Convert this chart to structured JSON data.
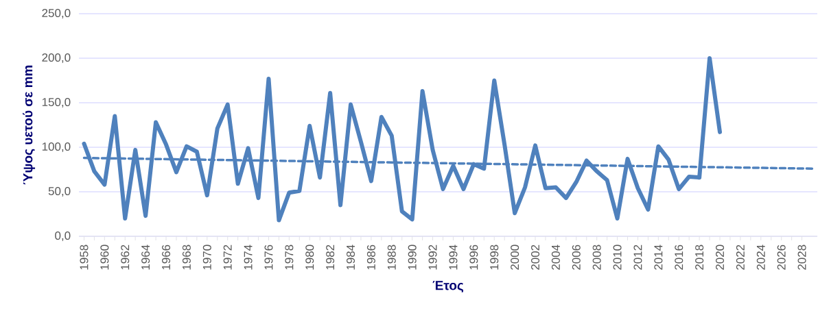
{
  "chart_data": {
    "type": "line",
    "xlabel": "Έτος",
    "ylabel": "Ύψος υετού σε mm",
    "xlim": [
      1957.5,
      2029.5
    ],
    "xticks": [
      1958,
      1960,
      1962,
      1964,
      1966,
      1968,
      1970,
      1972,
      1974,
      1976,
      1978,
      1980,
      1982,
      1984,
      1986,
      1988,
      1990,
      1992,
      1994,
      1996,
      1998,
      2000,
      2002,
      2004,
      2006,
      2008,
      2010,
      2012,
      2014,
      2016,
      2018,
      2020,
      2022,
      2024,
      2026,
      2028
    ],
    "ylim": [
      0,
      250
    ],
    "yticks": [
      {
        "value": 0,
        "label": "0,0"
      },
      {
        "value": 50,
        "label": "50,0"
      },
      {
        "value": 100,
        "label": "100,0"
      },
      {
        "value": 150,
        "label": "150,0"
      },
      {
        "value": 200,
        "label": "200,0"
      },
      {
        "value": 250,
        "label": "250,0"
      }
    ],
    "grid": "y",
    "legend": false,
    "marker": "none",
    "series": [
      {
        "color": "#4f81bd",
        "line_style": "solid",
        "x": [
          1958,
          1959,
          1960,
          1961,
          1962,
          1963,
          1964,
          1965,
          1966,
          1967,
          1968,
          1969,
          1970,
          1971,
          1972,
          1973,
          1974,
          1975,
          1976,
          1977,
          1978,
          1979,
          1980,
          1981,
          1982,
          1983,
          1984,
          1985,
          1986,
          1987,
          1988,
          1989,
          1990,
          1991,
          1992,
          1993,
          1994,
          1995,
          1996,
          1997,
          1998,
          1999,
          2000,
          2001,
          2002,
          2003,
          2004,
          2005,
          2006,
          2007,
          2008,
          2009,
          2010,
          2011,
          2012,
          2013,
          2014,
          2015,
          2016,
          2017,
          2018,
          2019,
          2020
        ],
        "values": [
          104,
          73,
          58,
          135,
          20,
          97,
          23,
          128,
          103,
          72,
          101,
          95,
          46,
          121,
          148,
          59,
          99,
          43,
          177,
          18,
          49,
          51,
          124,
          66,
          161,
          35,
          148,
          106,
          62,
          134,
          113,
          28,
          19,
          163,
          97,
          53,
          79,
          53,
          81,
          76,
          175,
          103,
          26,
          55,
          102,
          54,
          55,
          43,
          61,
          85,
          73,
          63,
          20,
          87,
          54,
          30,
          101,
          86,
          53,
          67,
          66,
          200,
          117
        ]
      },
      {
        "type": "line",
        "color": "#4f81bd",
        "line_style": "dashed",
        "x": [
          1958,
          2029
        ],
        "values": [
          88,
          76
        ]
      }
    ]
  }
}
